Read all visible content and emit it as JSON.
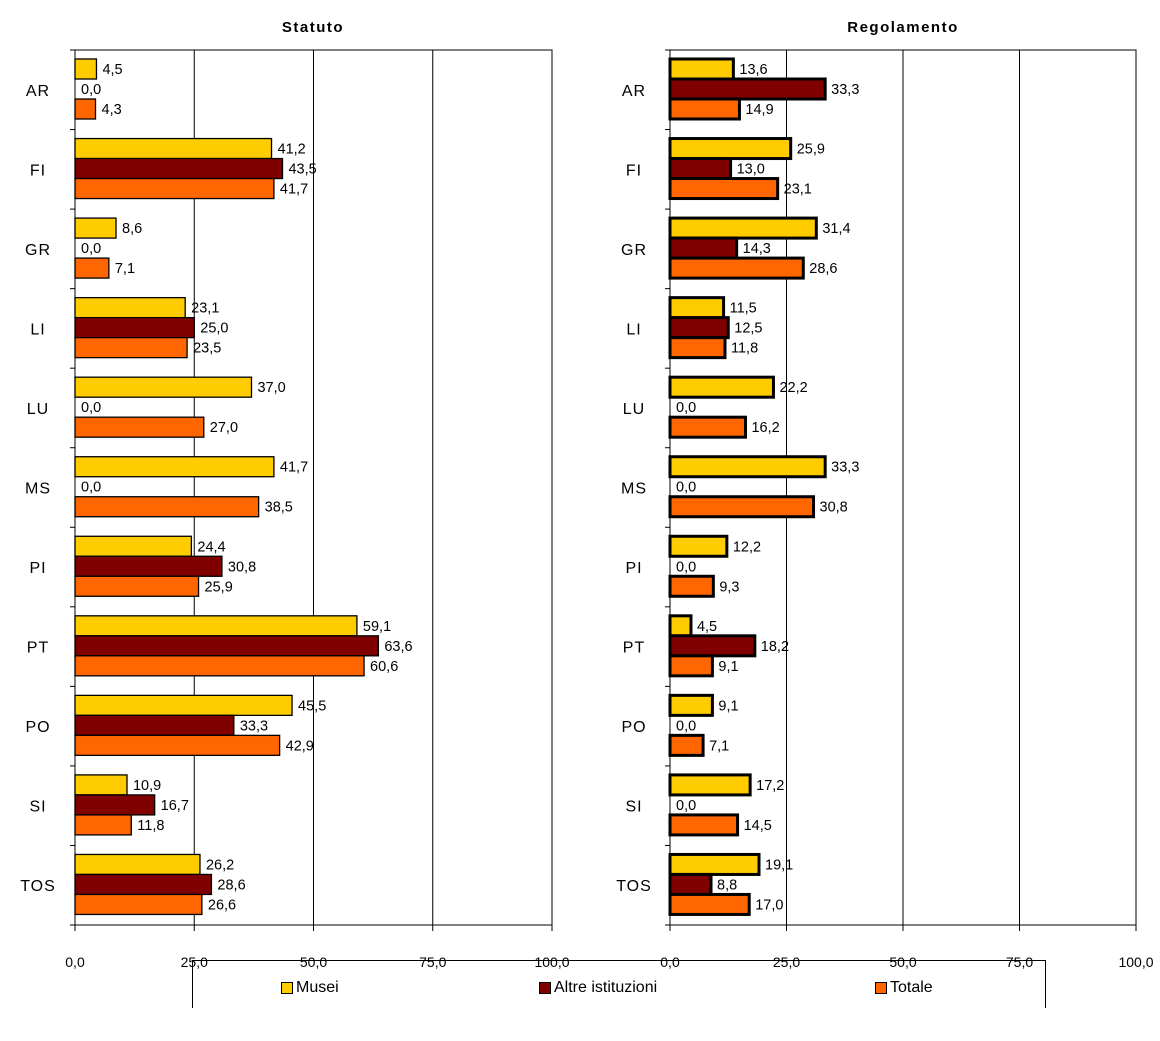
{
  "colors": {
    "musei": "#FFCC00",
    "altre": "#800000",
    "totale": "#FF6600"
  },
  "legend": {
    "items": [
      {
        "label": "Musei",
        "color": "#FFCC00"
      },
      {
        "label": "Altre istituzioni",
        "color": "#800000"
      },
      {
        "label": "Totale",
        "color": "#FF6600"
      }
    ],
    "position": "bottom"
  },
  "chart_data": [
    {
      "type": "bar",
      "orientation": "horizontal",
      "title": "Statuto",
      "categories": [
        "AR",
        "FI",
        "GR",
        "LI",
        "LU",
        "MS",
        "PI",
        "PT",
        "PO",
        "SI",
        "TOS"
      ],
      "series": [
        {
          "name": "Musei",
          "values": [
            4.5,
            41.2,
            8.6,
            23.1,
            37.0,
            41.7,
            24.4,
            59.1,
            45.5,
            10.9,
            26.2
          ],
          "labels": [
            "4,5",
            "41,2",
            "8,6",
            "23,1",
            "37,0",
            "41,7",
            "24,4",
            "59,1",
            "45,5",
            "10,9",
            "26,2"
          ]
        },
        {
          "name": "Altre istituzioni",
          "values": [
            0.0,
            43.5,
            0.0,
            25.0,
            0.0,
            0.0,
            30.8,
            63.6,
            33.3,
            16.7,
            28.6
          ],
          "labels": [
            "0,0",
            "43,5",
            "0,0",
            "25,0",
            "0,0",
            "0,0",
            "30,8",
            "63,6",
            "33,3",
            "16,7",
            "28,6"
          ]
        },
        {
          "name": "Totale",
          "values": [
            4.3,
            41.7,
            7.1,
            23.5,
            27.0,
            38.5,
            25.9,
            60.6,
            42.9,
            11.8,
            26.6
          ],
          "labels": [
            "4,3",
            "41,7",
            "7,1",
            "23,5",
            "27,0",
            "38,5",
            "25,9",
            "60,6",
            "42,9",
            "11,8",
            "26,6"
          ]
        }
      ],
      "xlim": [
        0,
        100
      ],
      "xticks": [
        "0,0",
        "25,0",
        "50,0",
        "75,0",
        "100,0"
      ],
      "grid": true
    },
    {
      "type": "bar",
      "orientation": "horizontal",
      "title": "Regolamento",
      "categories": [
        "AR",
        "FI",
        "GR",
        "LI",
        "LU",
        "MS",
        "PI",
        "PT",
        "PO",
        "SI",
        "TOS"
      ],
      "series": [
        {
          "name": "Musei",
          "values": [
            13.6,
            25.9,
            31.4,
            11.5,
            22.2,
            33.3,
            12.2,
            4.5,
            9.1,
            17.2,
            19.1
          ],
          "labels": [
            "13,6",
            "25,9",
            "31,4",
            "11,5",
            "22,2",
            "33,3",
            "12,2",
            "4,5",
            "9,1",
            "17,2",
            "19,1"
          ]
        },
        {
          "name": "Altre istituzioni",
          "values": [
            33.3,
            13.0,
            14.3,
            12.5,
            0.0,
            0.0,
            0.0,
            18.2,
            0.0,
            0.0,
            8.8
          ],
          "labels": [
            "33,3",
            "13,0",
            "14,3",
            "12,5",
            "0,0",
            "0,0",
            "0,0",
            "18,2",
            "0,0",
            "0,0",
            "8,8"
          ]
        },
        {
          "name": "Totale",
          "values": [
            14.9,
            23.1,
            28.6,
            11.8,
            16.2,
            30.8,
            9.3,
            9.1,
            7.1,
            14.5,
            17.0
          ],
          "labels": [
            "14,9",
            "23,1",
            "28,6",
            "11,8",
            "16,2",
            "30,8",
            "9,3",
            "9,1",
            "7,1",
            "14,5",
            "17,0"
          ]
        }
      ],
      "xlim": [
        0,
        100
      ],
      "xticks": [
        "0,0",
        "25,0",
        "50,0",
        "75,0",
        "100,0"
      ],
      "grid": true
    }
  ]
}
